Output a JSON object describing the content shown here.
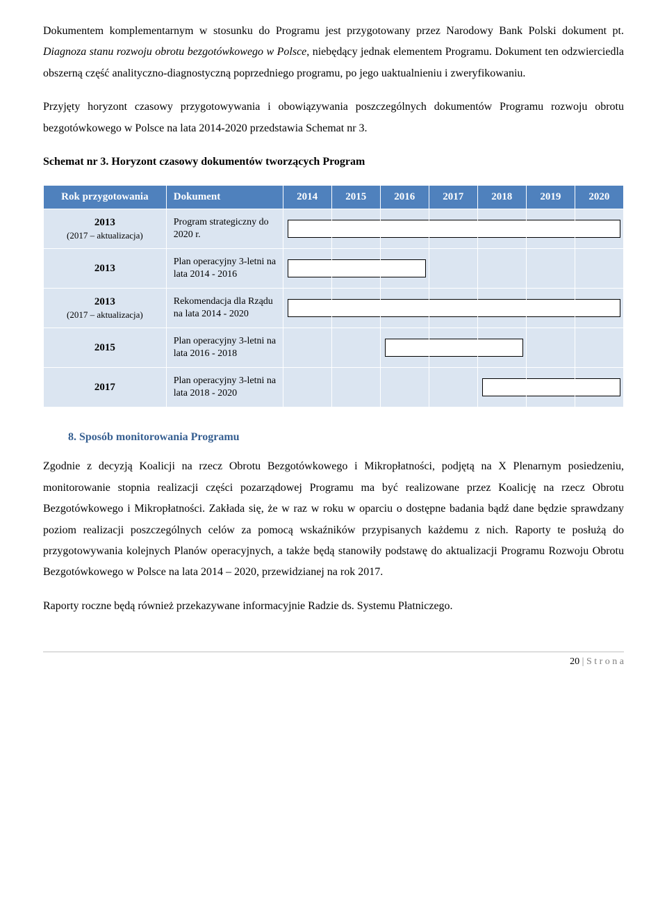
{
  "para1_a": "Dokumentem komplementarnym  w stosunku do Programu jest przygotowany przez Narodowy Bank Polski dokument pt. ",
  "para1_b": "Diagnoza stanu rozwoju obrotu bezgotówkowego w Polsce",
  "para1_c": ", niebędący jednak elementem Programu. Dokument ten odzwierciedla obszerną część analityczno-diagnostyczną poprzedniego programu, po jego uaktualnieniu i zweryfikowaniu.",
  "para2": "Przyjęty horyzont czasowy przygotowywania i obowiązywania poszczególnych dokumentów Programu rozwoju obrotu bezgotówkowego w Polsce na lata 2014-2020 przedstawia Schemat nr 3.",
  "schemat_title": "Schemat nr 3. Horyzont czasowy dokumentów tworzących Program",
  "headers": {
    "rok": "Rok przygotowania",
    "dok": "Dokument",
    "y2014": "2014",
    "y2015": "2015",
    "y2016": "2016",
    "y2017": "2017",
    "y2018": "2018",
    "y2019": "2019",
    "y2020": "2020"
  },
  "rows": [
    {
      "rok": "2013",
      "sub": "(2017 – aktualizacja)",
      "dok": "Program strategiczny do 2020 r.",
      "start": 0,
      "end": 7
    },
    {
      "rok": "2013",
      "sub": "",
      "dok": "Plan operacyjny 3-letni na lata 2014 - 2016",
      "start": 0,
      "end": 3
    },
    {
      "rok": "2013",
      "sub": "(2017 – aktualizacja)",
      "dok": "Rekomendacja dla Rządu na lata 2014 - 2020",
      "start": 0,
      "end": 7
    },
    {
      "rok": "2015",
      "sub": "",
      "dok": "Plan operacyjny 3-letni na lata 2016 - 2018",
      "start": 2,
      "end": 5
    },
    {
      "rok": "2017",
      "sub": "",
      "dok": "Plan operacyjny 3-letni na lata 2018 - 2020",
      "start": 4,
      "end": 7
    }
  ],
  "section8": "8. Sposób monitorowania Programu",
  "para3": "Zgodnie z decyzją Koalicji na rzecz Obrotu Bezgotówkowego i Mikropłatności, podjętą na X Plenarnym posiedzeniu, monitorowanie stopnia realizacji części pozarządowej Programu ma być realizowane przez Koalicję na rzecz Obrotu Bezgotówkowego i Mikropłatności. Zakłada się, że w raz w roku w oparciu o dostępne badania bądź dane będzie sprawdzany poziom realizacji poszczególnych celów za pomocą wskaźników przypisanych każdemu z nich. Raporty te posłużą do przygotowywania kolejnych Planów operacyjnych, a także będą stanowiły podstawę do aktualizacji Programu Rozwoju Obrotu Bezgotówkowego w Polsce na lata 2014 – 2020, przewidzianej na rok 2017.",
  "para4": "Raporty roczne będą również przekazywane informacyjnie Radzie ds. Systemu Płatniczego.",
  "footer_page": "20",
  "footer_sep": " | ",
  "footer_text": "S t r o n a"
}
